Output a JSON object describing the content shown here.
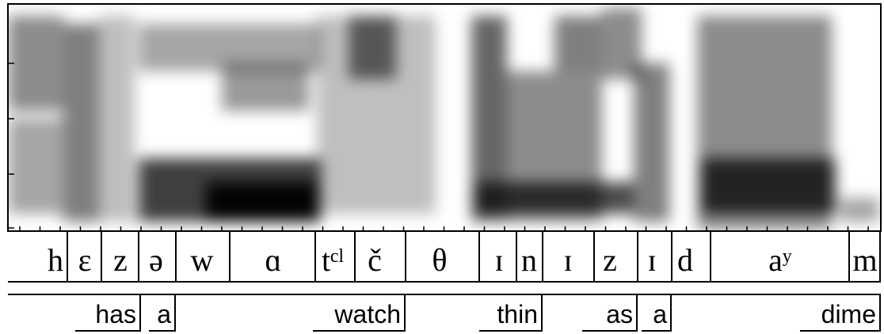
{
  "phones": [
    "h",
    "ɛ",
    "z",
    "ə",
    "w",
    "ɑ",
    "tᶜˡ",
    "č",
    "θ",
    "ɪ",
    "n",
    "ɪ",
    "z",
    "ɪ",
    "d",
    "aʸ",
    "m"
  ],
  "words": [
    "has",
    "a",
    "watch",
    "thin",
    "as",
    "a",
    "dime"
  ]
}
